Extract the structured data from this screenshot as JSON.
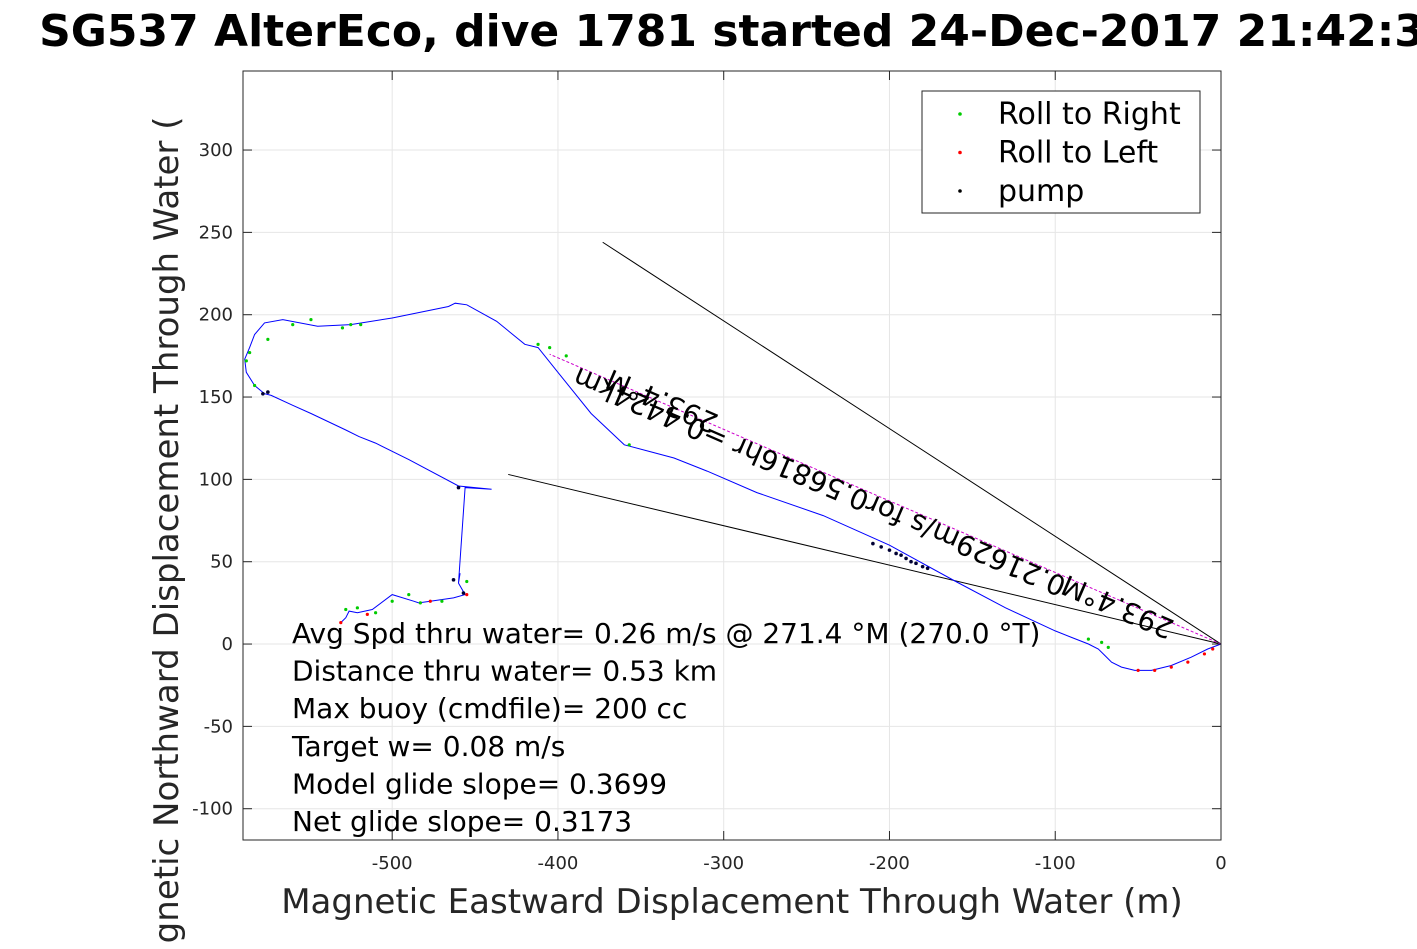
{
  "chart_data": {
    "type": "line",
    "title": "SG537 AlterEco, dive 1781 started 24-Dec-2017 21:42:3",
    "xlabel": "Magnetic Eastward Displacement Through Water (m)",
    "ylabel": "Magnetic Northward Displacement Through Water (",
    "xlim": [
      -590,
      0
    ],
    "ylim": [
      -119,
      348
    ],
    "x_ticks": [
      -500,
      -400,
      -300,
      -200,
      -100,
      0
    ],
    "x_tick_labels": [
      "-500",
      "-400",
      "-300",
      "-200",
      "-100",
      "0"
    ],
    "y_ticks": [
      -100,
      -50,
      0,
      50,
      100,
      150,
      200,
      250,
      300
    ],
    "y_tick_labels": [
      "-100",
      "-50",
      "0",
      "50",
      "100",
      "150",
      "200",
      "250",
      "300"
    ],
    "grid": true,
    "legend_position": "top-right",
    "legend": [
      {
        "label": "Roll to Right",
        "color": "#00cc00"
      },
      {
        "label": "Roll to Left",
        "color": "#ff0000"
      },
      {
        "label": "pump",
        "color": "#000000"
      }
    ],
    "colors": {
      "track": "#0000ff",
      "roll_right": "#00cc00",
      "roll_left": "#ff0000",
      "pump": "#000033",
      "reference_lines": "#000000",
      "heading_line": "#cc00cc"
    },
    "track": {
      "name": "",
      "x": [
        0,
        -8,
        -18,
        -30,
        -42,
        -52,
        -60,
        -66,
        -70,
        -74,
        -80,
        -90,
        -100,
        -130,
        -160,
        -200,
        -240,
        -280,
        -310,
        -330,
        -345,
        -360,
        -380,
        -400,
        -412,
        -420,
        -437,
        -455,
        -462,
        -466,
        -500,
        -525,
        -545,
        -566,
        -577,
        -583,
        -586,
        -589,
        -588,
        -583,
        -577,
        -573,
        -560,
        -549,
        -528,
        -520,
        -510,
        -490,
        -460,
        -440,
        -456,
        -460,
        -459,
        -460,
        -456,
        -463,
        -477,
        -484,
        -487,
        -500,
        -512,
        -521,
        -526,
        -528,
        -531
      ],
      "y": [
        0,
        -3,
        -8,
        -13,
        -16,
        -16,
        -14,
        -11,
        -7,
        -3,
        0,
        4,
        8,
        22,
        38,
        60,
        78,
        92,
        105,
        113,
        117,
        121,
        140,
        165,
        180,
        182,
        196,
        206,
        207,
        205,
        198,
        194,
        193,
        197,
        195,
        188,
        180,
        173,
        165,
        157,
        152,
        151,
        145,
        140,
        130,
        126,
        122,
        112,
        96,
        94,
        95,
        37,
        43,
        37,
        30,
        28,
        26,
        25,
        26,
        30,
        21,
        19,
        20,
        16,
        13
      ]
    },
    "pump_points": {
      "x": [
        -460,
        -463,
        -457,
        -575,
        -578,
        -210,
        -205,
        -200,
        -196,
        -193,
        -190,
        -187,
        -184,
        -180,
        -177
      ],
      "y": [
        95,
        39,
        31,
        153,
        152,
        61,
        59,
        57,
        55,
        54,
        52,
        50,
        49,
        47,
        46
      ]
    },
    "roll_right_points": {
      "x": [
        -528,
        -521,
        -510,
        -500,
        -490,
        -483,
        -470,
        -455,
        -412,
        -405,
        -395,
        -357,
        -583,
        -586,
        -588,
        -575,
        -560,
        -549,
        -530,
        -525,
        -519,
        -80,
        -72,
        -68
      ],
      "y": [
        21,
        22,
        19,
        26,
        30,
        25,
        26,
        38,
        182,
        180,
        175,
        121,
        157,
        177,
        172,
        185,
        194,
        197,
        192,
        194,
        194,
        3,
        1,
        -2
      ]
    },
    "roll_left_points": {
      "x": [
        -531,
        -515,
        -477,
        -455,
        -50,
        -40,
        -30,
        -20,
        -10,
        -5
      ],
      "y": [
        13,
        18,
        26,
        30,
        -16,
        -16,
        -14,
        -11,
        -6,
        -3
      ]
    },
    "reference_lines": [
      {
        "x": [
          0,
          -373
        ],
        "y": [
          0,
          244
        ]
      },
      {
        "x": [
          0,
          -430
        ],
        "y": [
          0,
          103
        ]
      },
      {
        "x": [
          0,
          -405
        ],
        "y": [
          0,
          176
        ]
      }
    ],
    "annotations": [
      {
        "text": "0.21629m/s for0.56816hr =0.4424km",
        "x": -240,
        "y": 104,
        "rotation": 23.4
      },
      {
        "text": "293.4°M",
        "x": -335,
        "y": 153,
        "rotation": 23.4
      },
      {
        "text": "293.4°M",
        "x": -60,
        "y": 28,
        "rotation": 23.4
      }
    ],
    "stats": [
      "Avg Spd thru water=  0.26 m/s @ 271.4 °M (270.0 °T)",
      "Distance thru water=  0.53 km",
      "Max buoy (cmdfile)= 200 cc",
      "Target w= 0.08 m/s",
      "Model glide slope= 0.3699",
      "Net glide slope= 0.3173"
    ]
  }
}
